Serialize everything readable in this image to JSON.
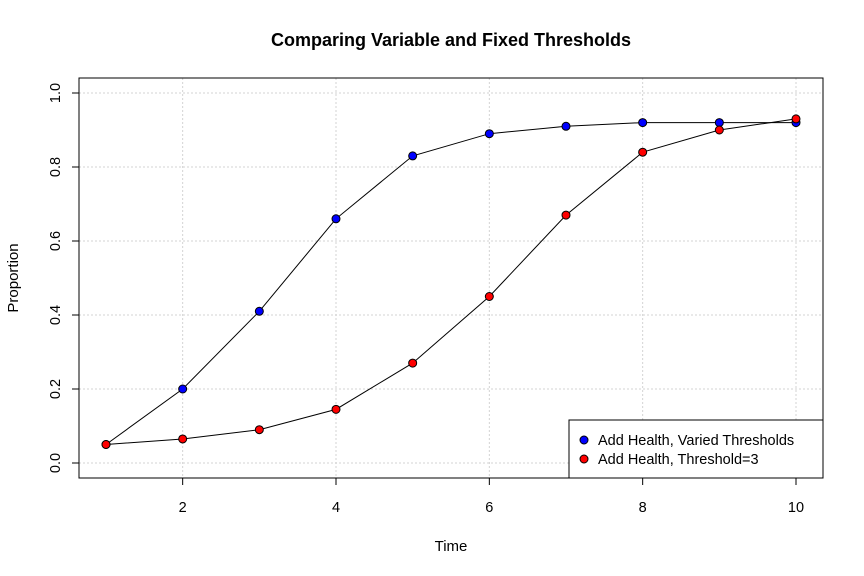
{
  "chart_data": {
    "type": "line",
    "title": "Comparing Variable and Fixed Thresholds",
    "xlabel": "Time",
    "ylabel": "Proportion",
    "xlim": [
      1,
      10
    ],
    "ylim": [
      0,
      1
    ],
    "x_ticks": [
      "2",
      "4",
      "6",
      "8",
      "10"
    ],
    "y_ticks": [
      "0.0",
      "0.2",
      "0.4",
      "0.6",
      "0.8",
      "1.0"
    ],
    "grid": true,
    "legend_position": "bottom-right",
    "x": [
      1,
      2,
      3,
      4,
      5,
      6,
      7,
      8,
      9,
      10
    ],
    "series": [
      {
        "name": "Add Health, Varied Thresholds",
        "color": "#0000ff",
        "values": [
          0.05,
          0.2,
          0.41,
          0.66,
          0.83,
          0.89,
          0.91,
          0.92,
          0.92,
          0.92
        ]
      },
      {
        "name": "Add Health, Threshold=3",
        "color": "#ff0000",
        "values": [
          0.05,
          0.065,
          0.09,
          0.145,
          0.27,
          0.45,
          0.67,
          0.84,
          0.9,
          0.93
        ]
      }
    ]
  }
}
